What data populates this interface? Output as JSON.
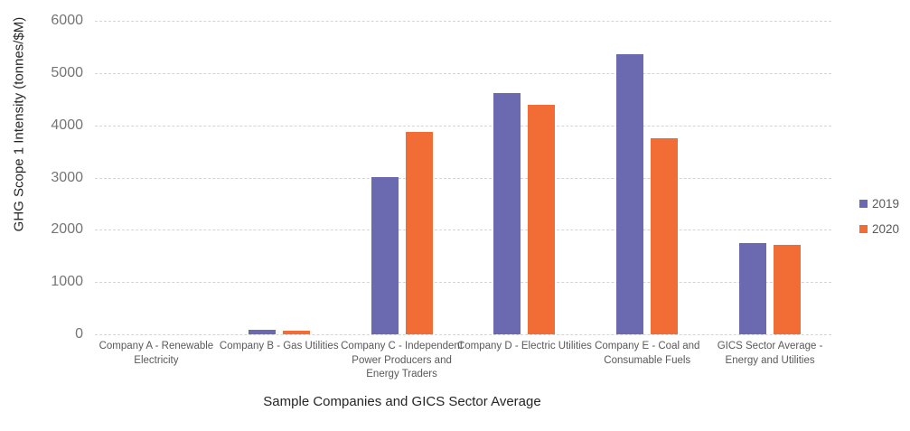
{
  "chart_data": {
    "type": "bar",
    "title": "",
    "xlabel": "Sample Companies and GICS Sector Average",
    "ylabel": "GHG Scope 1 Intensity (tonnes/$M)",
    "ylim": [
      0,
      6000
    ],
    "ytick_step": 1000,
    "grid": true,
    "gridline_style": "dashed",
    "legend_position": "right",
    "categories": [
      "Company A - Renewable Electricity",
      "Company B - Gas Utilities",
      "Company C - Independent Power Producers and Energy Traders",
      "Company D - Electric Utilities",
      "Company E - Coal and Consumable Fuels",
      "GICS Sector Average - Energy and Utilities"
    ],
    "series": [
      {
        "name": "2019",
        "color": "#6B69B0",
        "values": [
          0,
          80,
          3010,
          4620,
          5360,
          1750
        ]
      },
      {
        "name": "2020",
        "color": "#F26C36",
        "values": [
          0,
          70,
          3870,
          4400,
          3750,
          1710
        ]
      }
    ]
  },
  "colors": {
    "background": "#FFFFFF",
    "gridline": "#D4D4D4",
    "tick_label": "#757575",
    "category_label": "#595959",
    "axis_title": "#262626",
    "legend_text": "#595959",
    "series_2019": "#6B69B0",
    "series_2020": "#F26C36"
  }
}
